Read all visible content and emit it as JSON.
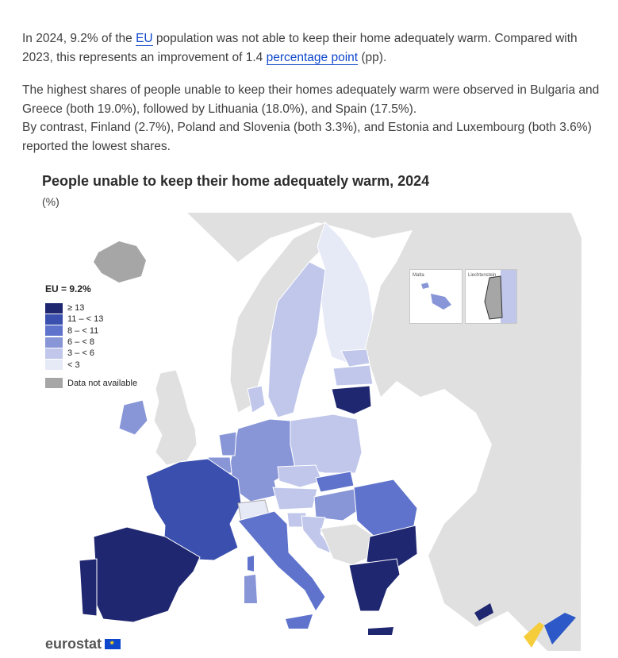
{
  "intro": {
    "p1_a": "In 2024, 9.2% of the ",
    "p1_link_eu": "EU",
    "p1_b": " population was not able to keep their home adequately warm. Compared with 2023, this represents an improvement of 1.4 ",
    "p1_link_pp": "percentage point",
    "p1_c": " (pp).",
    "p2": "The highest shares of people unable to keep their homes adequately warm were observed in Bulgaria and Greece (both 19.0%), followed by Lithuania (18.0%), and Spain (17.5%).",
    "p3": "By contrast, Finland (2.7%), Poland and Slovenia (both 3.3%), and Estonia and Luxembourg (both 3.6%) reported the lowest shares."
  },
  "map": {
    "title": "People unable to keep their home adequately warm, 2024",
    "unit": "(%)",
    "legend_title": "EU = 9.2%",
    "legend": [
      {
        "label": "≥ 13",
        "color": "#1f2770"
      },
      {
        "label": "11 – < 13",
        "color": "#3a4fae"
      },
      {
        "label": "8 – < 11",
        "color": "#5f73cc"
      },
      {
        "label": "6 – < 8",
        "color": "#8896d8"
      },
      {
        "label": "3 – < 6",
        "color": "#c0c7eb"
      },
      {
        "label": "< 3",
        "color": "#e6e9f6"
      }
    ],
    "not_available": {
      "label": "Data not available",
      "color": "#a6a6a6"
    },
    "inset_malta": "Malta",
    "inset_liechtenstein": "Liechtenstein",
    "logo_text": "eurostat"
  },
  "colors": {
    "background_land": "#e0e0e0",
    "sea": "#ffffff",
    "link": "#0e47cb"
  }
}
